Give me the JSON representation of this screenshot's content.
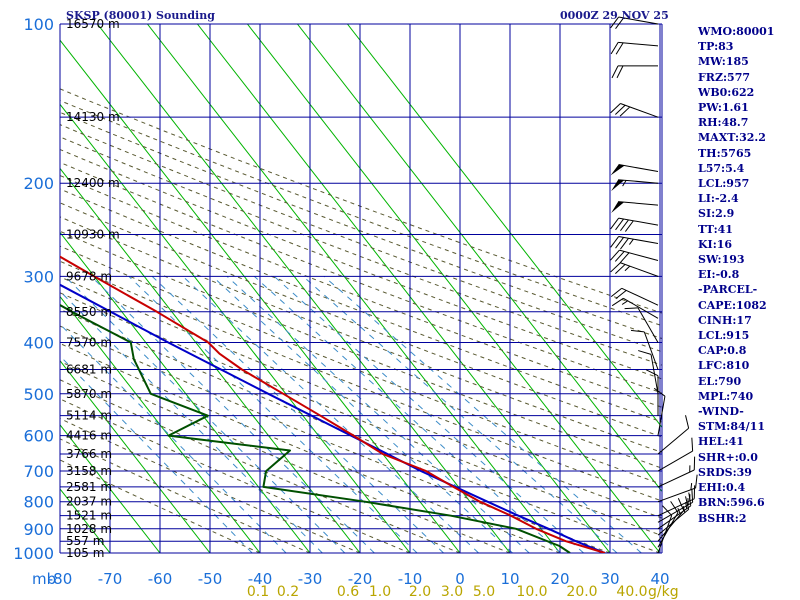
{
  "header": {
    "station": "SKSP (80001) Sounding",
    "datetime": "0000Z 29 NOV 25"
  },
  "indices": [
    "WMO:80001",
    "TP:83",
    "MW:185",
    "FRZ:577",
    "WB0:622",
    "PW:1.61",
    "RH:48.7",
    "MAXT:32.2",
    "TH:5765",
    "L57:5.4",
    "LCL:957",
    "LI:-2.4",
    "SI:2.9",
    "TT:41",
    "KI:16",
    "SW:193",
    "EI:-0.8",
    "-PARCEL-",
    "CAPE:1082",
    "CINH:17",
    "LCL:915",
    "CAP:0.8",
    "LFC:810",
    "EL:790",
    "MPL:740",
    "-WIND-",
    "STM:84/11",
    "HEL:41",
    "SHR+:0.0",
    "SRDS:39",
    "EHI:0.4",
    "BRN:596.6",
    "BSHR:2"
  ],
  "colors": {
    "grid": "#00009c",
    "isotherm": "#00b400",
    "dry_adiabat": "#5a5a32",
    "mixing_ratio": "#3c8cc8",
    "temperature": "#c80000",
    "dewpoint": "#005000",
    "parcel": "#0000c8",
    "wind": "#000000",
    "pressure_label": "#1a6ed8",
    "height_label": "#000000",
    "temp_label": "#1a6ed8",
    "mix_label": "#b9a500"
  },
  "chart_data": {
    "type": "skew-t",
    "title": "SKSP (80001) Sounding",
    "pressure_axis": {
      "label": "mb",
      "ticks": [
        100,
        200,
        300,
        400,
        500,
        600,
        700,
        800,
        900,
        1000
      ],
      "range": [
        100,
        1000
      ]
    },
    "temperature_axis": {
      "ticks": [
        -80,
        -70,
        -60,
        -50,
        -40,
        -30,
        -20,
        -10,
        0,
        10,
        20,
        30,
        40
      ],
      "range": [
        -80,
        40
      ]
    },
    "height_labels": [
      {
        "p": 100,
        "label": "16570 m"
      },
      {
        "p": 150,
        "label": "14130 m"
      },
      {
        "p": 200,
        "label": "12400 m"
      },
      {
        "p": 250,
        "label": "10930 m"
      },
      {
        "p": 300,
        "label": "9678 m"
      },
      {
        "p": 350,
        "label": "8550 m"
      },
      {
        "p": 400,
        "label": "7570 m"
      },
      {
        "p": 450,
        "label": "6681 m"
      },
      {
        "p": 500,
        "label": "5870 m"
      },
      {
        "p": 550,
        "label": "5114 m"
      },
      {
        "p": 600,
        "label": "4416 m"
      },
      {
        "p": 650,
        "label": "3766 m"
      },
      {
        "p": 700,
        "label": "3158 m"
      },
      {
        "p": 750,
        "label": "2581 m"
      },
      {
        "p": 800,
        "label": "2037 m"
      },
      {
        "p": 850,
        "label": "1521 m"
      },
      {
        "p": 900,
        "label": "1028 m"
      },
      {
        "p": 950,
        "label": "557 m"
      },
      {
        "p": 1000,
        "label": "105 m"
      }
    ],
    "mixing_ratio_labels": [
      "0.1",
      "0.2",
      "0.6",
      "1.0",
      "2.0",
      "3.0",
      "5.0",
      "10.0",
      "20.0",
      "40.0"
    ],
    "mixing_ratio_unit": "g/kg",
    "temperature": [
      {
        "p": 1000,
        "t": 29
      },
      {
        "p": 950,
        "t": 23
      },
      {
        "p": 900,
        "t": 19
      },
      {
        "p": 850,
        "t": 16
      },
      {
        "p": 800,
        "t": 12
      },
      {
        "p": 750,
        "t": 9
      },
      {
        "p": 700,
        "t": 6
      },
      {
        "p": 650,
        "t": 0
      },
      {
        "p": 600,
        "t": -3
      },
      {
        "p": 550,
        "t": -6.5
      },
      {
        "p": 500,
        "t": -10.5
      },
      {
        "p": 450,
        "t": -15
      },
      {
        "p": 420,
        "t": -17
      },
      {
        "p": 400,
        "t": -17.5
      },
      {
        "p": 350,
        "t": -23
      },
      {
        "p": 300,
        "t": -30
      },
      {
        "p": 250,
        "t": -38
      },
      {
        "p": 200,
        "t": -48
      },
      {
        "p": 150,
        "t": -57
      },
      {
        "p": 120,
        "t": -65
      },
      {
        "p": 100,
        "t": -71
      }
    ],
    "dewpoint": [
      {
        "p": 1000,
        "t": 22
      },
      {
        "p": 970,
        "t": 21
      },
      {
        "p": 900,
        "t": 15
      },
      {
        "p": 850,
        "t": 4
      },
      {
        "p": 800,
        "t": -11
      },
      {
        "p": 750,
        "t": -29
      },
      {
        "p": 700,
        "t": -26
      },
      {
        "p": 640,
        "t": -18
      },
      {
        "p": 600,
        "t": -40
      },
      {
        "p": 550,
        "t": -29
      },
      {
        "p": 500,
        "t": -37
      },
      {
        "p": 430,
        "t": -35
      },
      {
        "p": 400,
        "t": -33
      },
      {
        "p": 350,
        "t": -40
      },
      {
        "p": 300,
        "t": -47
      },
      {
        "p": 250,
        "t": -58
      },
      {
        "p": 220,
        "t": -70
      },
      {
        "p": 200,
        "t": -73
      },
      {
        "p": 180,
        "t": -89
      },
      {
        "p": 140,
        "t": -92
      },
      {
        "p": 135,
        "t": -88
      }
    ],
    "parcel": [
      {
        "p": 1000,
        "t": 29
      },
      {
        "p": 950,
        "t": 25
      },
      {
        "p": 900,
        "t": 21.5
      },
      {
        "p": 850,
        "t": 17.5
      },
      {
        "p": 800,
        "t": 13.5
      },
      {
        "p": 700,
        "t": 5
      },
      {
        "p": 600,
        "t": -3.5
      },
      {
        "p": 500,
        "t": -13.5
      },
      {
        "p": 400,
        "t": -25.5
      },
      {
        "p": 300,
        "t": -40
      },
      {
        "p": 250,
        "t": -49
      },
      {
        "p": 200,
        "t": -60
      },
      {
        "p": 150,
        "t": -74
      },
      {
        "p": 130,
        "t": -82
      }
    ],
    "wind_barbs": [
      {
        "p": 1000,
        "dir": 200,
        "spd": 10
      },
      {
        "p": 975,
        "dir": 210,
        "spd": 10
      },
      {
        "p": 950,
        "dir": 220,
        "spd": 15
      },
      {
        "p": 925,
        "dir": 230,
        "spd": 15
      },
      {
        "p": 900,
        "dir": 235,
        "spd": 15
      },
      {
        "p": 875,
        "dir": 240,
        "spd": 15
      },
      {
        "p": 850,
        "dir": 245,
        "spd": 15
      },
      {
        "p": 800,
        "dir": 250,
        "spd": 15
      },
      {
        "p": 750,
        "dir": 245,
        "spd": 15
      },
      {
        "p": 700,
        "dir": 240,
        "spd": 10
      },
      {
        "p": 650,
        "dir": 230,
        "spd": 10
      },
      {
        "p": 600,
        "dir": 190,
        "spd": 10
      },
      {
        "p": 550,
        "dir": 180,
        "spd": 10
      },
      {
        "p": 500,
        "dir": 170,
        "spd": 10
      },
      {
        "p": 450,
        "dir": 160,
        "spd": 10
      },
      {
        "p": 400,
        "dir": 150,
        "spd": 10
      },
      {
        "p": 360,
        "dir": 120,
        "spd": 15
      },
      {
        "p": 340,
        "dir": 115,
        "spd": 20
      },
      {
        "p": 300,
        "dir": 110,
        "spd": 25
      },
      {
        "p": 280,
        "dir": 105,
        "spd": 30
      },
      {
        "p": 260,
        "dir": 100,
        "spd": 35
      },
      {
        "p": 240,
        "dir": 100,
        "spd": 40
      },
      {
        "p": 220,
        "dir": 95,
        "spd": 50
      },
      {
        "p": 200,
        "dir": 95,
        "spd": 55
      },
      {
        "p": 190,
        "dir": 100,
        "spd": 50
      },
      {
        "p": 150,
        "dir": 110,
        "spd": 30
      },
      {
        "p": 120,
        "dir": 90,
        "spd": 20
      },
      {
        "p": 110,
        "dir": 95,
        "spd": 20
      },
      {
        "p": 100,
        "dir": 100,
        "spd": 20
      }
    ]
  }
}
